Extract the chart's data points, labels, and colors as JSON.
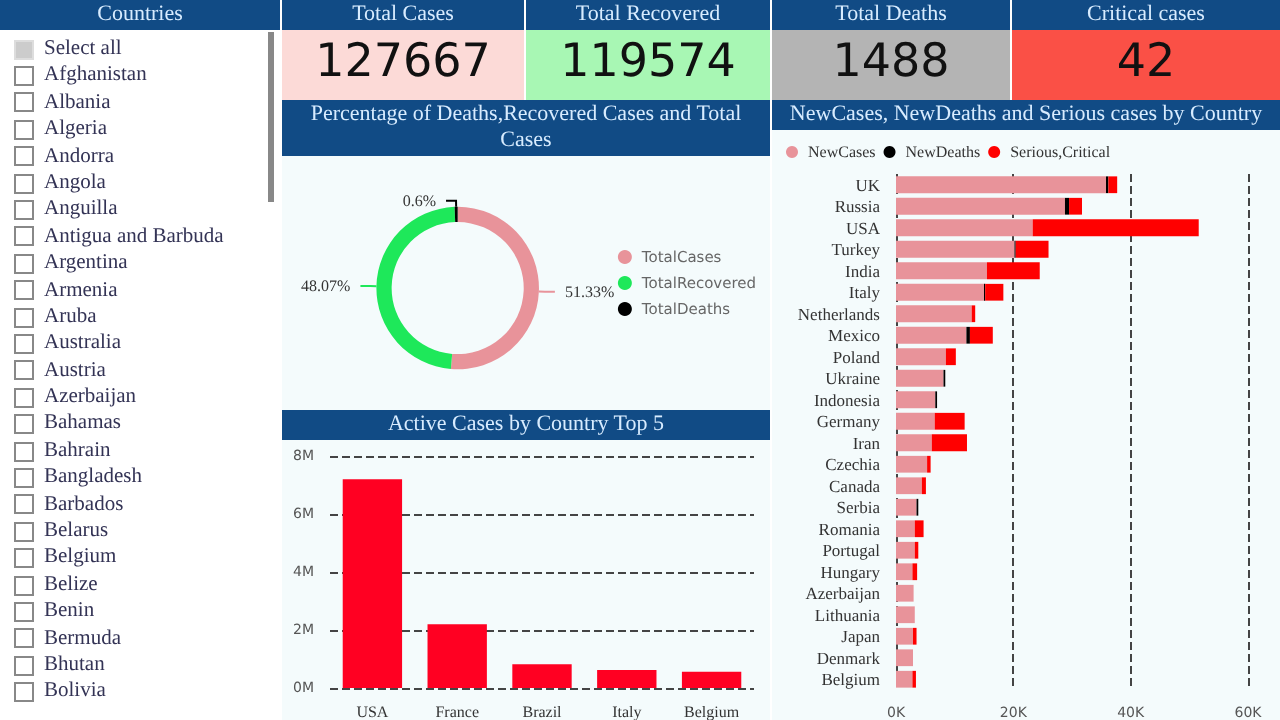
{
  "chart_data": [
    {
      "type": "other",
      "title": "Countries",
      "annotations": [
        "Select all",
        "Afghanistan",
        "Albania",
        "Algeria",
        "Andorra",
        "Angola",
        "Anguilla",
        "Antigua and Barbuda",
        "Argentina",
        "Armenia",
        "Aruba",
        "Australia",
        "Austria",
        "Azerbaijan",
        "Bahamas",
        "Bahrain",
        "Bangladesh",
        "Barbados",
        "Belarus",
        "Belgium",
        "Belize",
        "Benin",
        "Bermuda",
        "Bhutan",
        "Bolivia"
      ]
    },
    {
      "type": "other",
      "title": "Total Cases",
      "annotations": [
        "127667"
      ],
      "color": "#fcdad7"
    },
    {
      "type": "other",
      "title": "Total Recovered",
      "annotations": [
        "119574"
      ],
      "color": "#a8f7b4"
    },
    {
      "type": "other",
      "title": "Total Deaths",
      "annotations": [
        "1488"
      ],
      "color": "#b4b4b4"
    },
    {
      "type": "other",
      "title": "Critical cases",
      "annotations": [
        "42"
      ],
      "color": "#fa5046"
    },
    {
      "type": "donut",
      "title": "Percentage of Deaths,Recovered Cases and Total Cases",
      "categories": [
        "TotalCases",
        "TotalRecovered",
        "TotalDeaths"
      ],
      "values": [
        51.33,
        48.07,
        0.6
      ],
      "colors": [
        "#e8939a",
        "#1ee85a",
        "#000000"
      ],
      "value_labels": [
        "51.33%",
        "48.07%",
        "0.6%"
      ],
      "legend": "right"
    },
    {
      "type": "bar",
      "title": "Active Cases by Country Top 5",
      "categories": [
        "USA",
        "France",
        "Brazil",
        "Italy",
        "Belgium"
      ],
      "values": [
        7200000,
        2200000,
        820000,
        620000,
        560000
      ],
      "color": "#ff0022",
      "ylim": [
        0,
        8000000
      ],
      "yticks": [
        {
          "value": 0,
          "label": "0M"
        },
        {
          "value": 2000000,
          "label": "2M"
        },
        {
          "value": 4000000,
          "label": "4M"
        },
        {
          "value": 6000000,
          "label": "6M"
        },
        {
          "value": 8000000,
          "label": "8M"
        }
      ],
      "grid": "y"
    },
    {
      "type": "bar",
      "title": "NewCases, NewDeaths and Serious cases by Country",
      "orientation": "horizontal",
      "stacked": true,
      "legend": "top left",
      "grid": "x",
      "categories": [
        "UK",
        "Russia",
        "USA",
        "Turkey",
        "India",
        "Italy",
        "Netherlands",
        "Mexico",
        "Poland",
        "Ukraine",
        "Indonesia",
        "Germany",
        "Iran",
        "Czechia",
        "Canada",
        "Serbia",
        "Romania",
        "Portugal",
        "Hungary",
        "Azerbaijan",
        "Lithuania",
        "Japan",
        "Denmark",
        "Belgium"
      ],
      "xlim": [
        0,
        60000
      ],
      "xticks": [
        {
          "value": 0,
          "label": "0K"
        },
        {
          "value": 20000,
          "label": "20K"
        },
        {
          "value": 40000,
          "label": "40K"
        },
        {
          "value": 60000,
          "label": "60K"
        }
      ],
      "series": [
        {
          "name": "NewCases",
          "color": "#e8939a",
          "values": [
            35800,
            28800,
            23300,
            20200,
            15500,
            15000,
            12900,
            12000,
            8500,
            8100,
            6700,
            6600,
            6100,
            5300,
            4400,
            3500,
            3200,
            3200,
            2800,
            3000,
            3200,
            2900,
            2900,
            2800
          ]
        },
        {
          "name": "NewDeaths",
          "color": "#000000",
          "values": [
            400,
            700,
            0,
            200,
            0,
            200,
            0,
            600,
            0,
            300,
            300,
            0,
            0,
            0,
            0,
            300,
            0,
            0,
            0,
            0,
            0,
            0,
            0,
            0
          ]
        },
        {
          "name": "Serious,Critical",
          "color": "#ff0000",
          "values": [
            1500,
            2200,
            28300,
            5600,
            9000,
            3100,
            600,
            3900,
            1700,
            0,
            0,
            5100,
            6000,
            600,
            700,
            0,
            1500,
            600,
            800,
            0,
            0,
            600,
            0,
            600
          ]
        }
      ]
    }
  ]
}
